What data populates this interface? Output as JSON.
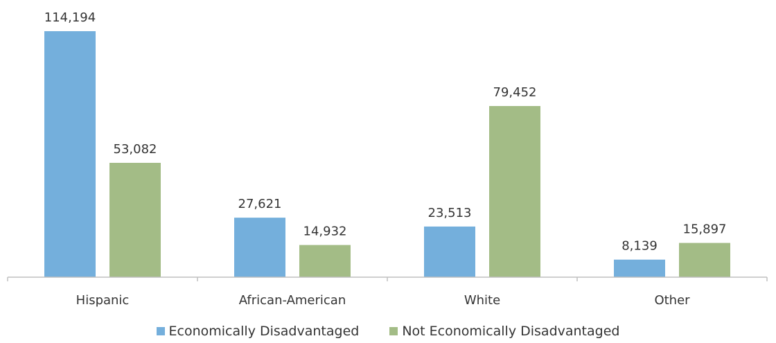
{
  "chart_data": {
    "type": "bar",
    "categories": [
      "Hispanic",
      "African-American",
      "White",
      "Other"
    ],
    "series": [
      {
        "name": "Economically Disadvantaged",
        "values": [
          114194,
          27621,
          23513,
          8139
        ],
        "labels": [
          "114,194",
          "27,621",
          "23,513",
          "8,139"
        ],
        "color": "#74AFDC"
      },
      {
        "name": "Not Economically Disadvantaged",
        "values": [
          53082,
          14932,
          79452,
          15897
        ],
        "labels": [
          "53,082",
          "14,932",
          "79,452",
          "15,897"
        ],
        "color": "#A3BC86"
      }
    ],
    "ylim": [
      0,
      114194
    ],
    "grid": false,
    "legend_position": "bottom",
    "axis_color": "#BFBFBF"
  }
}
